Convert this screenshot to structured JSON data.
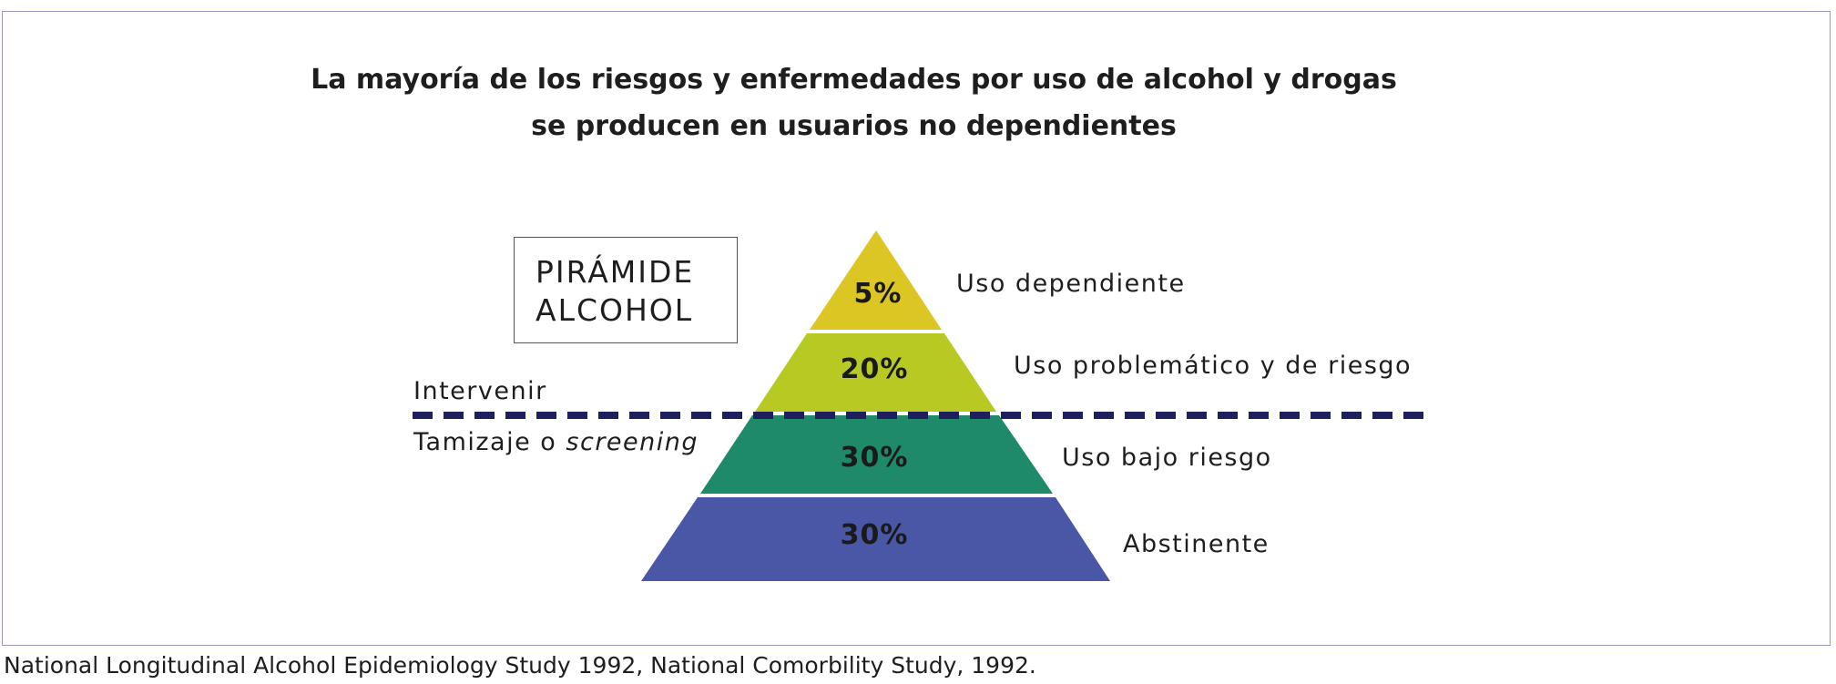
{
  "title": {
    "line1": "La mayoría de los riesgos y enfermedades por uso de alcohol y drogas",
    "line2": "se producen en usuarios no dependientes"
  },
  "pyramid_box": {
    "line1": "PIRÁMIDE",
    "line2": "ALCOHOL"
  },
  "levels": [
    {
      "percent": "5%",
      "label": "Uso dependiente",
      "color": "#dcc624"
    },
    {
      "percent": "20%",
      "label": "Uso problemático y de riesgo",
      "color": "#b9c923"
    },
    {
      "percent": "30%",
      "label": "Uso bajo riesgo",
      "color": "#1e8a6a"
    },
    {
      "percent": "30%",
      "label": "Abstinente",
      "color": "#4a56a6"
    }
  ],
  "divider": {
    "above_label": "Intervenir",
    "below_label_text": "Tamizaje o",
    "below_label_italic": "screening",
    "color": "#1f1f5e"
  },
  "footer": "National Longitudinal Alcohol Epidemiology Study 1992, National Comorbility Study, 1992."
}
